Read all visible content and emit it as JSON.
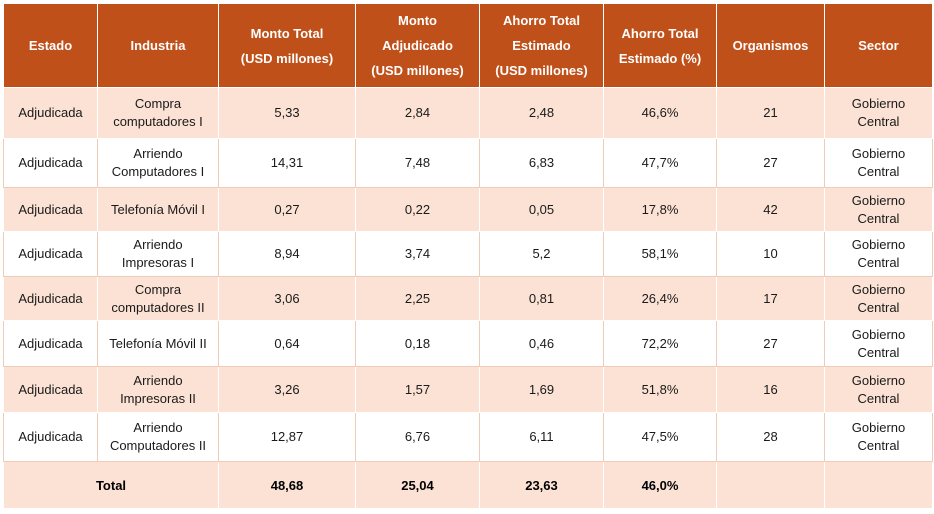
{
  "headers": [
    [
      "Estado"
    ],
    [
      "Industria"
    ],
    [
      "Monto Total",
      "(USD millones)"
    ],
    [
      "Monto",
      "Adjudicado",
      "(USD millones)"
    ],
    [
      "Ahorro Total",
      "Estimado",
      "(USD millones)"
    ],
    [
      "Ahorro Total",
      "Estimado (%)"
    ],
    [
      "Organismos"
    ],
    [
      "Sector"
    ]
  ],
  "rows": [
    {
      "estado": "Adjudicada",
      "industria": [
        "Compra",
        "computadores I"
      ],
      "monto_total": "5,33",
      "monto_adjudicado": "2,84",
      "ahorro_total": "2,48",
      "ahorro_pct": "46,6%",
      "organismos": "21",
      "sector": [
        "Gobierno",
        "Central"
      ]
    },
    {
      "estado": "Adjudicada",
      "industria": [
        "Arriendo",
        "Computadores I"
      ],
      "monto_total": "14,31",
      "monto_adjudicado": "7,48",
      "ahorro_total": "6,83",
      "ahorro_pct": "47,7%",
      "organismos": "27",
      "sector": [
        "Gobierno",
        "Central"
      ]
    },
    {
      "estado": "Adjudicada",
      "industria": [
        "Telefonía Móvil I"
      ],
      "monto_total": "0,27",
      "monto_adjudicado": "0,22",
      "ahorro_total": "0,05",
      "ahorro_pct": "17,8%",
      "organismos": "42",
      "sector": [
        "Gobierno",
        "Central"
      ]
    },
    {
      "estado": "Adjudicada",
      "industria": [
        "Arriendo",
        "Impresoras I"
      ],
      "monto_total": "8,94",
      "monto_adjudicado": "3,74",
      "ahorro_total": "5,2",
      "ahorro_pct": "58,1%",
      "organismos": "10",
      "sector": [
        "Gobierno",
        "Central"
      ]
    },
    {
      "estado": "Adjudicada",
      "industria": [
        "Compra",
        "computadores II"
      ],
      "monto_total": "3,06",
      "monto_adjudicado": "2,25",
      "ahorro_total": "0,81",
      "ahorro_pct": "26,4%",
      "organismos": "17",
      "sector": [
        "Gobierno",
        "Central"
      ]
    },
    {
      "estado": "Adjudicada",
      "industria": [
        "Telefonía Móvil II"
      ],
      "monto_total": "0,64",
      "monto_adjudicado": "0,18",
      "ahorro_total": "0,46",
      "ahorro_pct": "72,2%",
      "organismos": "27",
      "sector": [
        "Gobierno",
        "Central"
      ]
    },
    {
      "estado": "Adjudicada",
      "industria": [
        "Arriendo",
        "Impresoras II"
      ],
      "monto_total": "3,26",
      "monto_adjudicado": "1,57",
      "ahorro_total": "1,69",
      "ahorro_pct": "51,8%",
      "organismos": "16",
      "sector": [
        "Gobierno",
        "Central"
      ]
    },
    {
      "estado": "Adjudicada",
      "industria": [
        "Arriendo",
        "Computadores II"
      ],
      "monto_total": "12,87",
      "monto_adjudicado": "6,76",
      "ahorro_total": "6,11",
      "ahorro_pct": "47,5%",
      "organismos": "28",
      "sector": [
        "Gobierno",
        "Central"
      ]
    }
  ],
  "total": {
    "label": "Total",
    "monto_total": "48,68",
    "monto_adjudicado": "25,04",
    "ahorro_total": "23,63",
    "ahorro_pct": "46,0%"
  },
  "colors": {
    "header_bg": "#c0501a",
    "odd_row_bg": "#fbe2d5",
    "even_row_bg": "#ffffff"
  }
}
